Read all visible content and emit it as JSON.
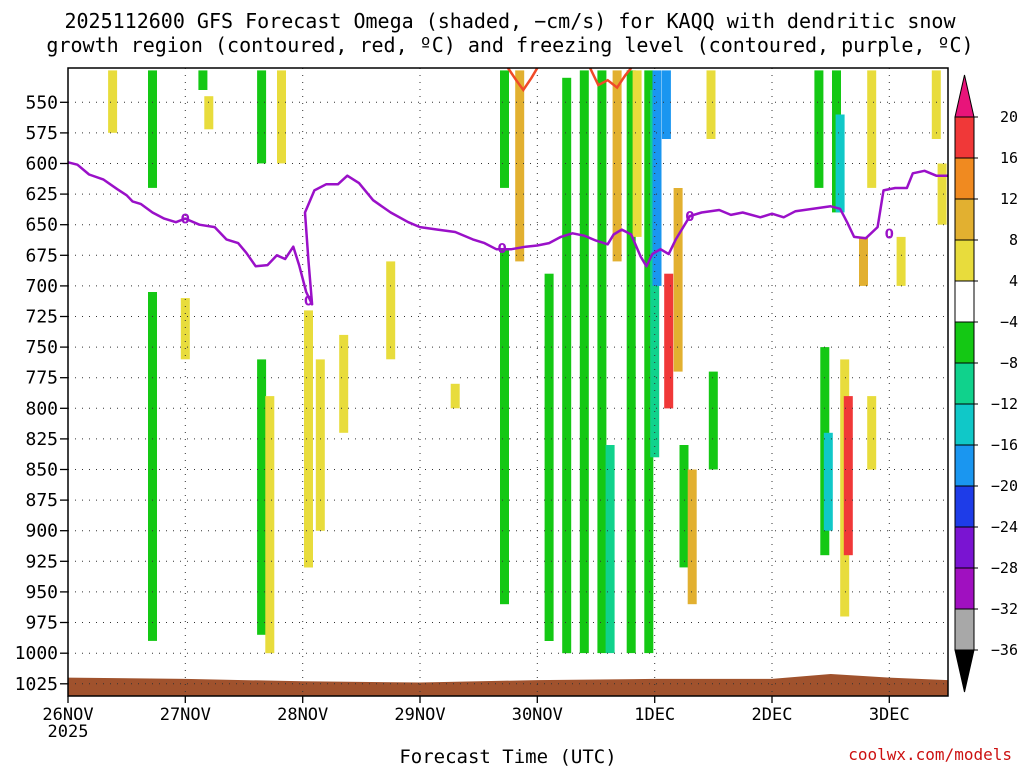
{
  "chart_data": {
    "type": "heatmap",
    "title_line1": "2025112600 GFS Forecast Omega (shaded, −cm/s) for KAQQ with dendritic snow",
    "title_line2": "growth region (contoured, red, ºC) and freezing level (contoured, purple, ºC)",
    "xlabel": "Forecast Time (UTC)",
    "credit": "coolwx.com/models",
    "x_axis": {
      "range_days": [
        0,
        7.5
      ],
      "ticks": [
        {
          "day": 0,
          "label": "26NOV",
          "sublabel": "2025"
        },
        {
          "day": 1,
          "label": "27NOV"
        },
        {
          "day": 2,
          "label": "28NOV"
        },
        {
          "day": 3,
          "label": "29NOV"
        },
        {
          "day": 4,
          "label": "30NOV"
        },
        {
          "day": 5,
          "label": "1DEC"
        },
        {
          "day": 6,
          "label": "2DEC"
        },
        {
          "day": 7,
          "label": "3DEC"
        }
      ]
    },
    "y_axis": {
      "label_unit": "hPa",
      "range": [
        1035,
        522
      ],
      "ticks": [
        550,
        575,
        600,
        625,
        650,
        675,
        700,
        725,
        750,
        775,
        800,
        825,
        850,
        875,
        900,
        925,
        950,
        975,
        1000,
        1025
      ]
    },
    "colorbar": {
      "labels": [
        "20",
        "16",
        "12",
        "8",
        "4",
        "−4",
        "−8",
        "−12",
        "−16",
        "−20",
        "−24",
        "−28",
        "−32",
        "−36"
      ],
      "levels": [
        20,
        16,
        12,
        8,
        4,
        -4,
        -8,
        -12,
        -16,
        -20,
        -24,
        -28,
        -32,
        -36
      ],
      "bands": [
        {
          "from": 16,
          "to": 20,
          "color": "#f03838"
        },
        {
          "from": 12,
          "to": 16,
          "color": "#f08a20"
        },
        {
          "from": 8,
          "to": 12,
          "color": "#e2b030"
        },
        {
          "from": 4,
          "to": 8,
          "color": "#e8dc3c"
        },
        {
          "from": -4,
          "to": 4,
          "color": "#ffffff"
        },
        {
          "from": -8,
          "to": -4,
          "color": "#14c814"
        },
        {
          "from": -12,
          "to": -8,
          "color": "#10d28c"
        },
        {
          "from": -16,
          "to": -12,
          "color": "#10c8c8"
        },
        {
          "from": -20,
          "to": -16,
          "color": "#1a96f0"
        },
        {
          "from": -24,
          "to": -20,
          "color": "#1e3ce8"
        },
        {
          "from": -28,
          "to": -24,
          "color": "#7a14d2"
        },
        {
          "from": -32,
          "to": -28,
          "color": "#a010c0"
        },
        {
          "from": -36,
          "to": -32,
          "color": "#a8a8a8"
        }
      ],
      "top_arrow_color": "#e8147a",
      "bottom_arrow_color": "#000000"
    },
    "freezing_level": {
      "color": "#9a10c8",
      "contour_label": "0",
      "label_points": [
        {
          "day": 1.0,
          "p": 645
        },
        {
          "day": 2.05,
          "p": 712
        },
        {
          "day": 3.7,
          "p": 669
        },
        {
          "day": 5.3,
          "p": 643
        },
        {
          "day": 7.0,
          "p": 657
        }
      ],
      "points": [
        {
          "day": 0.0,
          "p": 599
        },
        {
          "day": 0.08,
          "p": 601
        },
        {
          "day": 0.18,
          "p": 609
        },
        {
          "day": 0.3,
          "p": 613
        },
        {
          "day": 0.42,
          "p": 621
        },
        {
          "day": 0.5,
          "p": 626
        },
        {
          "day": 0.55,
          "p": 631
        },
        {
          "day": 0.62,
          "p": 633
        },
        {
          "day": 0.72,
          "p": 640
        },
        {
          "day": 0.82,
          "p": 645
        },
        {
          "day": 0.92,
          "p": 648
        },
        {
          "day": 1.0,
          "p": 645
        },
        {
          "day": 1.12,
          "p": 650
        },
        {
          "day": 1.25,
          "p": 652
        },
        {
          "day": 1.35,
          "p": 662
        },
        {
          "day": 1.45,
          "p": 665
        },
        {
          "day": 1.52,
          "p": 673
        },
        {
          "day": 1.6,
          "p": 684
        },
        {
          "day": 1.7,
          "p": 683
        },
        {
          "day": 1.78,
          "p": 675
        },
        {
          "day": 1.85,
          "p": 678
        },
        {
          "day": 1.92,
          "p": 668
        },
        {
          "day": 1.97,
          "p": 683
        },
        {
          "day": 2.03,
          "p": 705
        },
        {
          "day": 2.08,
          "p": 715
        },
        {
          "day": 2.05,
          "p": 680
        },
        {
          "day": 2.02,
          "p": 640
        },
        {
          "day": 2.1,
          "p": 622
        },
        {
          "day": 2.2,
          "p": 617
        },
        {
          "day": 2.3,
          "p": 617
        },
        {
          "day": 2.38,
          "p": 610
        },
        {
          "day": 2.48,
          "p": 616
        },
        {
          "day": 2.6,
          "p": 630
        },
        {
          "day": 2.75,
          "p": 640
        },
        {
          "day": 2.9,
          "p": 648
        },
        {
          "day": 3.0,
          "p": 652
        },
        {
          "day": 3.15,
          "p": 654
        },
        {
          "day": 3.3,
          "p": 656
        },
        {
          "day": 3.45,
          "p": 662
        },
        {
          "day": 3.55,
          "p": 665
        },
        {
          "day": 3.65,
          "p": 670
        },
        {
          "day": 3.78,
          "p": 670
        },
        {
          "day": 3.9,
          "p": 668
        },
        {
          "day": 4.0,
          "p": 667
        },
        {
          "day": 4.1,
          "p": 665
        },
        {
          "day": 4.2,
          "p": 660
        },
        {
          "day": 4.3,
          "p": 657
        },
        {
          "day": 4.4,
          "p": 659
        },
        {
          "day": 4.5,
          "p": 663
        },
        {
          "day": 4.6,
          "p": 666
        },
        {
          "day": 4.65,
          "p": 658
        },
        {
          "day": 4.72,
          "p": 654
        },
        {
          "day": 4.8,
          "p": 658
        },
        {
          "day": 4.88,
          "p": 676
        },
        {
          "day": 4.93,
          "p": 684
        },
        {
          "day": 4.98,
          "p": 674
        },
        {
          "day": 5.05,
          "p": 670
        },
        {
          "day": 5.12,
          "p": 674
        },
        {
          "day": 5.18,
          "p": 662
        },
        {
          "day": 5.25,
          "p": 651
        },
        {
          "day": 5.3,
          "p": 643
        },
        {
          "day": 5.4,
          "p": 640
        },
        {
          "day": 5.55,
          "p": 638
        },
        {
          "day": 5.65,
          "p": 642
        },
        {
          "day": 5.75,
          "p": 640
        },
        {
          "day": 5.9,
          "p": 644
        },
        {
          "day": 6.0,
          "p": 641
        },
        {
          "day": 6.1,
          "p": 644
        },
        {
          "day": 6.2,
          "p": 639
        },
        {
          "day": 6.35,
          "p": 637
        },
        {
          "day": 6.5,
          "p": 635
        },
        {
          "day": 6.58,
          "p": 637
        },
        {
          "day": 6.64,
          "p": 648
        },
        {
          "day": 6.7,
          "p": 660
        },
        {
          "day": 6.8,
          "p": 661
        },
        {
          "day": 6.9,
          "p": 652
        },
        {
          "day": 6.95,
          "p": 622
        },
        {
          "day": 7.05,
          "p": 620
        },
        {
          "day": 7.15,
          "p": 620
        },
        {
          "day": 7.2,
          "p": 608
        },
        {
          "day": 7.3,
          "p": 606
        },
        {
          "day": 7.4,
          "p": 610
        },
        {
          "day": 7.5,
          "p": 610
        }
      ]
    },
    "dgz_contour": {
      "color": "#f04a28",
      "segments": [
        [
          {
            "day": 3.75,
            "p": 522
          },
          {
            "day": 3.82,
            "p": 532
          },
          {
            "day": 3.88,
            "p": 540
          },
          {
            "day": 3.95,
            "p": 530
          },
          {
            "day": 4.0,
            "p": 522
          }
        ],
        [
          {
            "day": 4.45,
            "p": 522
          },
          {
            "day": 4.52,
            "p": 536
          },
          {
            "day": 4.6,
            "p": 532
          },
          {
            "day": 4.68,
            "p": 538
          },
          {
            "day": 4.75,
            "p": 528
          },
          {
            "day": 4.8,
            "p": 522
          }
        ]
      ]
    },
    "omega_features": [
      {
        "day": 0.38,
        "p1": 524,
        "p2": 575,
        "v": 5
      },
      {
        "day": 1.15,
        "p1": 524,
        "p2": 540,
        "v": -6
      },
      {
        "day": 1.2,
        "p1": 545,
        "p2": 572,
        "v": 5
      },
      {
        "day": 1.65,
        "p1": 524,
        "p2": 600,
        "v": -6
      },
      {
        "day": 1.82,
        "p1": 524,
        "p2": 600,
        "v": 5
      },
      {
        "day": 0.72,
        "p1": 524,
        "p2": 620,
        "v": -6
      },
      {
        "day": 0.72,
        "p1": 705,
        "p2": 990,
        "v": -6
      },
      {
        "day": 1.0,
        "p1": 710,
        "p2": 760,
        "v": 5
      },
      {
        "day": 1.65,
        "p1": 760,
        "p2": 985,
        "v": -6
      },
      {
        "day": 1.72,
        "p1": 790,
        "p2": 1000,
        "v": 5
      },
      {
        "day": 2.05,
        "p1": 720,
        "p2": 930,
        "v": 5
      },
      {
        "day": 2.15,
        "p1": 760,
        "p2": 900,
        "v": 5
      },
      {
        "day": 2.35,
        "p1": 740,
        "p2": 820,
        "v": 5
      },
      {
        "day": 2.75,
        "p1": 680,
        "p2": 760,
        "v": 5
      },
      {
        "day": 3.3,
        "p1": 780,
        "p2": 800,
        "v": 5
      },
      {
        "day": 3.72,
        "p1": 524,
        "p2": 620,
        "v": -6
      },
      {
        "day": 3.72,
        "p1": 670,
        "p2": 960,
        "v": -6
      },
      {
        "day": 3.85,
        "p1": 524,
        "p2": 680,
        "v": 8
      },
      {
        "day": 4.1,
        "p1": 690,
        "p2": 990,
        "v": -6
      },
      {
        "day": 4.25,
        "p1": 530,
        "p2": 1000,
        "v": -6
      },
      {
        "day": 4.4,
        "p1": 524,
        "p2": 1000,
        "v": -6
      },
      {
        "day": 4.55,
        "p1": 524,
        "p2": 1000,
        "v": -6
      },
      {
        "day": 4.62,
        "p1": 830,
        "p2": 1000,
        "v": -12
      },
      {
        "day": 4.68,
        "p1": 524,
        "p2": 680,
        "v": 8
      },
      {
        "day": 4.8,
        "p1": 524,
        "p2": 1000,
        "v": -6
      },
      {
        "day": 4.85,
        "p1": 524,
        "p2": 660,
        "v": 5
      },
      {
        "day": 4.95,
        "p1": 524,
        "p2": 1000,
        "v": -6
      },
      {
        "day": 5.0,
        "p1": 540,
        "p2": 840,
        "v": -12
      },
      {
        "day": 5.02,
        "p1": 524,
        "p2": 700,
        "v": -20
      },
      {
        "day": 5.1,
        "p1": 524,
        "p2": 580,
        "v": -20
      },
      {
        "day": 5.12,
        "p1": 690,
        "p2": 800,
        "v": 18
      },
      {
        "day": 5.2,
        "p1": 620,
        "p2": 770,
        "v": 10
      },
      {
        "day": 5.25,
        "p1": 830,
        "p2": 930,
        "v": -6
      },
      {
        "day": 5.32,
        "p1": 850,
        "p2": 960,
        "v": 10
      },
      {
        "day": 5.5,
        "p1": 770,
        "p2": 850,
        "v": -6
      },
      {
        "day": 5.48,
        "p1": 524,
        "p2": 580,
        "v": 5
      },
      {
        "day": 6.4,
        "p1": 524,
        "p2": 620,
        "v": -6
      },
      {
        "day": 6.45,
        "p1": 750,
        "p2": 920,
        "v": -6
      },
      {
        "day": 6.48,
        "p1": 820,
        "p2": 900,
        "v": -14
      },
      {
        "day": 6.55,
        "p1": 524,
        "p2": 640,
        "v": -6
      },
      {
        "day": 6.58,
        "p1": 560,
        "p2": 640,
        "v": -16
      },
      {
        "day": 6.62,
        "p1": 760,
        "p2": 970,
        "v": 5
      },
      {
        "day": 6.65,
        "p1": 790,
        "p2": 920,
        "v": 18
      },
      {
        "day": 6.78,
        "p1": 660,
        "p2": 700,
        "v": 10
      },
      {
        "day": 6.85,
        "p1": 790,
        "p2": 850,
        "v": 5
      },
      {
        "day": 6.85,
        "p1": 524,
        "p2": 620,
        "v": 5
      },
      {
        "day": 7.1,
        "p1": 660,
        "p2": 700,
        "v": 5
      },
      {
        "day": 7.4,
        "p1": 524,
        "p2": 580,
        "v": 5
      },
      {
        "day": 7.45,
        "p1": 600,
        "p2": 650,
        "v": 5
      }
    ],
    "surface_terrain": {
      "color": "#a0522d",
      "top_pressure_at_day": [
        {
          "day": 0.0,
          "p": 1020
        },
        {
          "day": 1.0,
          "p": 1021
        },
        {
          "day": 2.0,
          "p": 1023
        },
        {
          "day": 3.0,
          "p": 1024
        },
        {
          "day": 4.0,
          "p": 1022
        },
        {
          "day": 5.0,
          "p": 1021
        },
        {
          "day": 6.0,
          "p": 1021
        },
        {
          "day": 6.5,
          "p": 1017
        },
        {
          "day": 7.0,
          "p": 1020
        },
        {
          "day": 7.5,
          "p": 1022
        }
      ]
    }
  }
}
